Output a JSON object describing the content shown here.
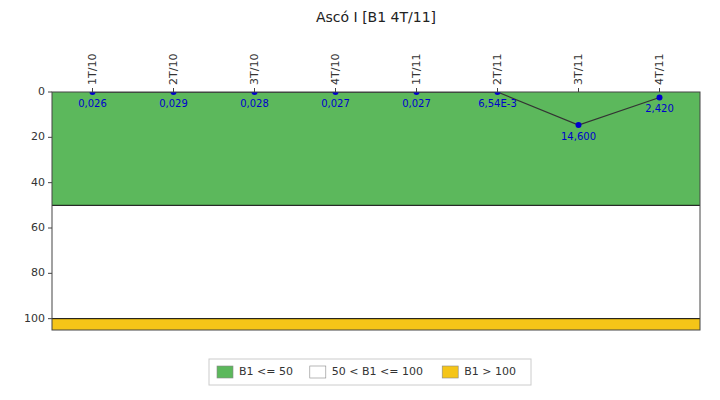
{
  "chart_data": {
    "type": "line",
    "title": "Ascó I [B1 4T/11]",
    "categories": [
      "1T/10",
      "2T/10",
      "3T/10",
      "4T/10",
      "1T/11",
      "2T/11",
      "3T/11",
      "4T/11"
    ],
    "values": [
      0.026,
      0.029,
      0.028,
      0.027,
      0.027,
      0.00654,
      14.6,
      2.42
    ],
    "value_labels": [
      "0,026",
      "0,029",
      "0,028",
      "0,027",
      "0,027",
      "6,54E-3",
      "14,600",
      "2,420"
    ],
    "data_labels": true,
    "color": "#0000CC",
    "marker": "circle",
    "line_style": "solid",
    "ylim": [
      105,
      0
    ],
    "yticks": [
      0,
      20,
      40,
      60,
      80,
      100
    ],
    "grid": false,
    "legend": "bottom",
    "bands": [
      {
        "name": "B1 <= 50",
        "from": 0,
        "to": 50,
        "color": "#5CB85C"
      },
      {
        "name": "50 < B1 <= 100",
        "from": 50,
        "to": 100,
        "color": "#FFFFFF"
      },
      {
        "name": "B1 > 100",
        "from": 100,
        "to": 105,
        "color": "#F5C518"
      }
    ]
  }
}
